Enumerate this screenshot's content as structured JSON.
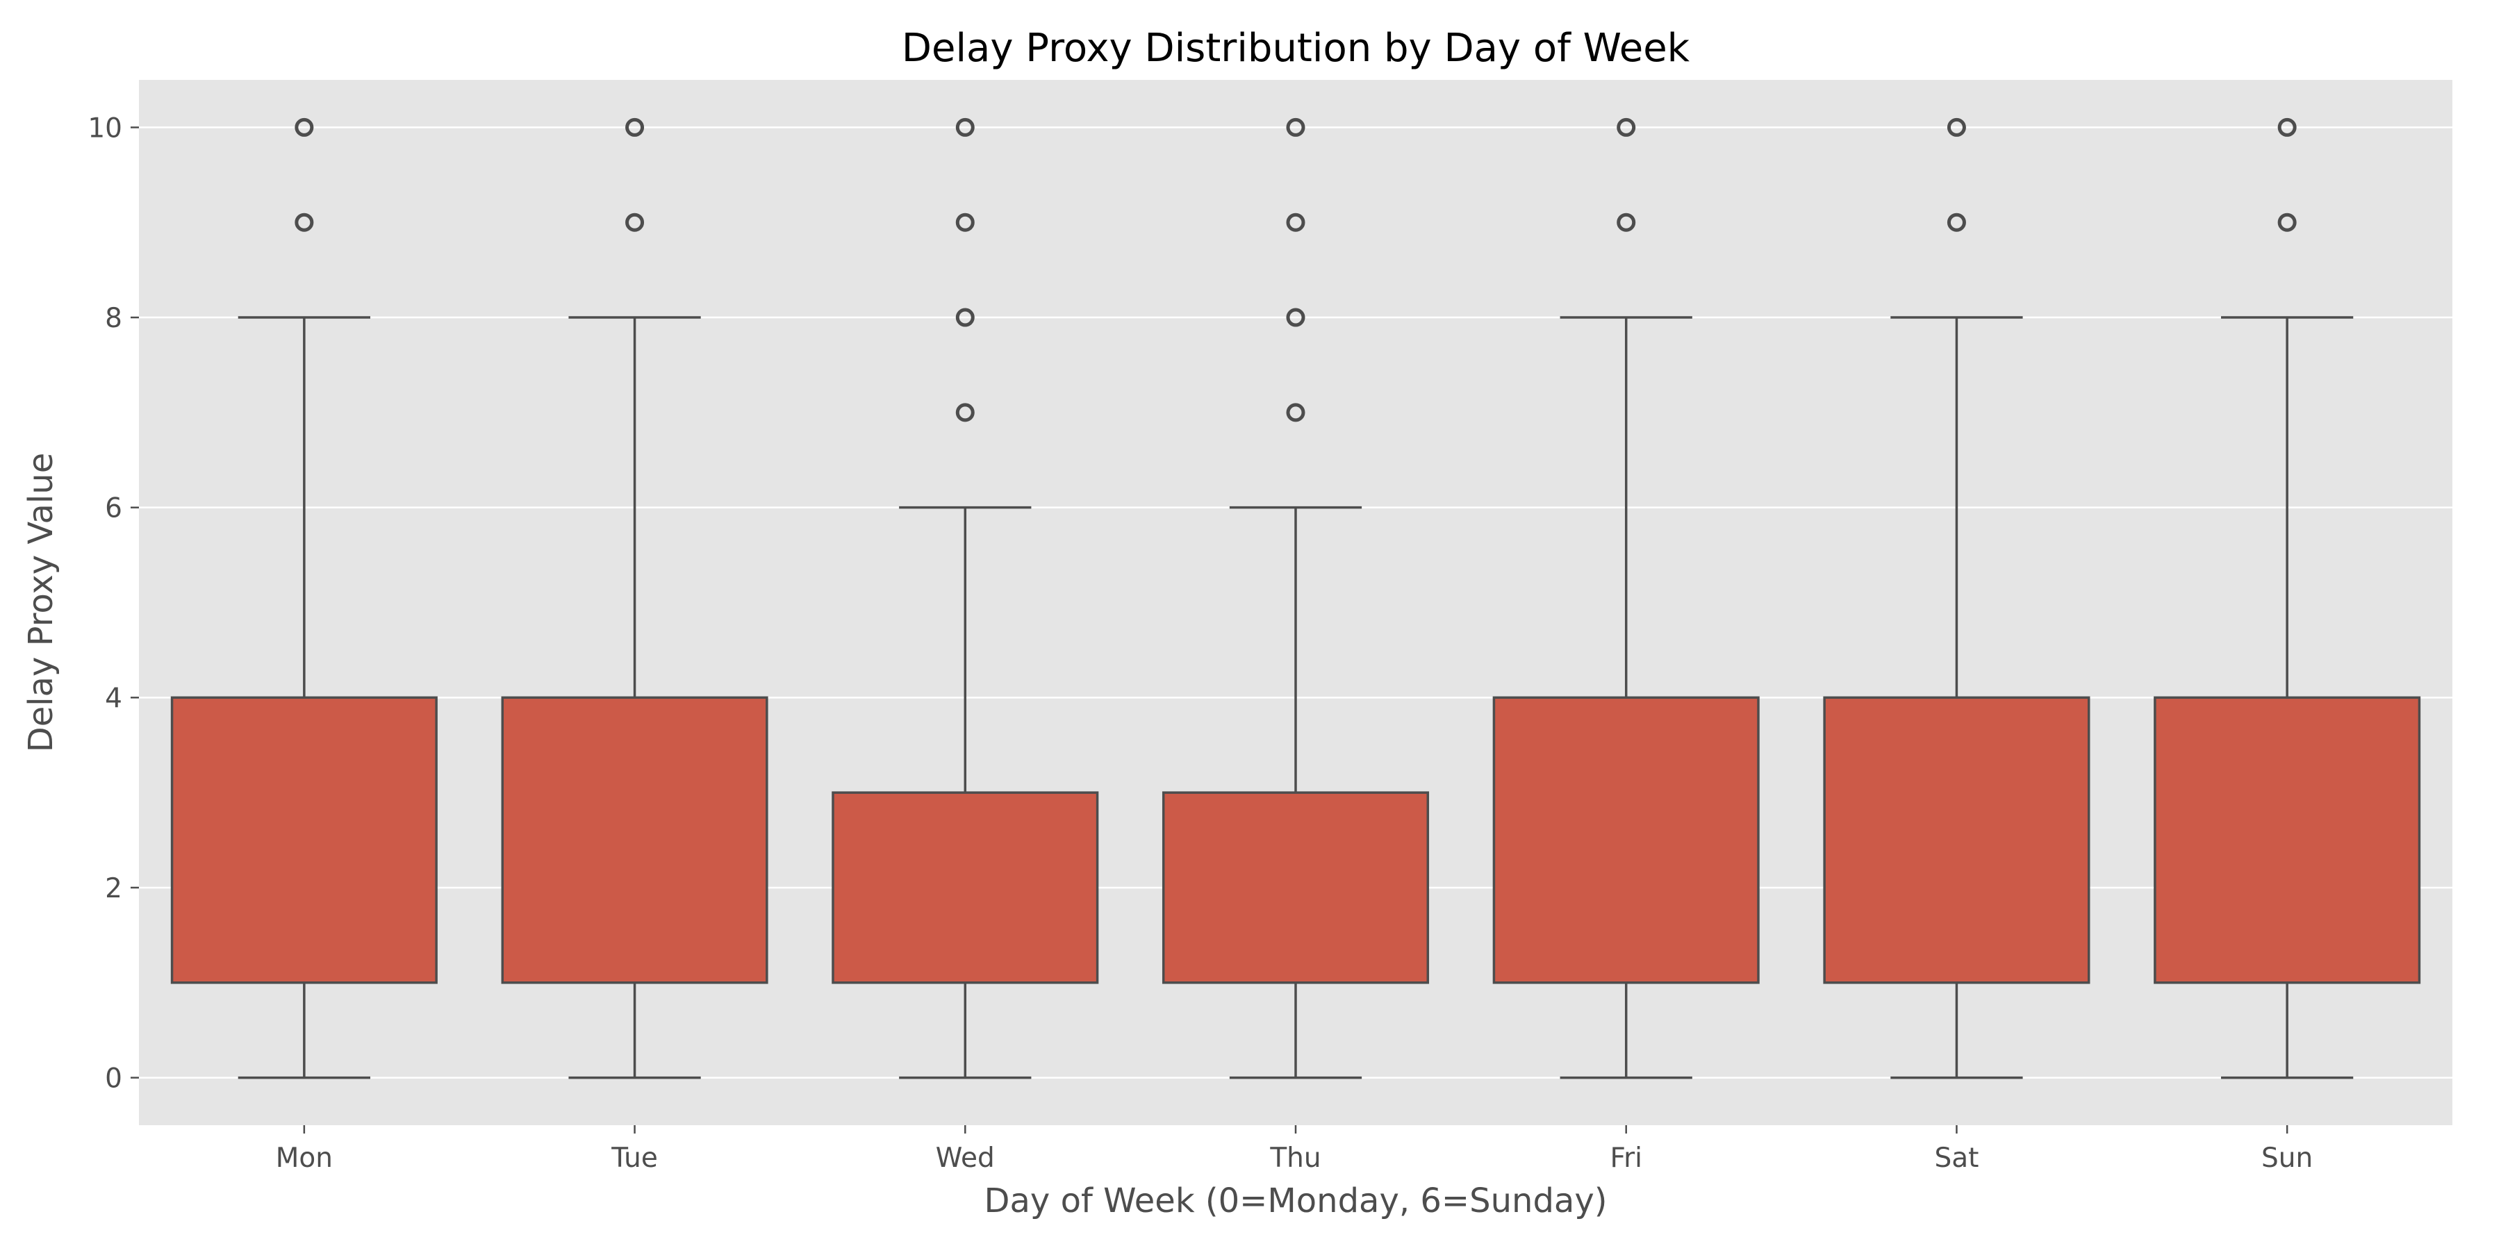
{
  "chart_data": {
    "type": "box",
    "title": "Delay Proxy Distribution by Day of Week",
    "xlabel": "Day of Week (0=Monday, 6=Sunday)",
    "ylabel": "Delay Proxy Value",
    "ylim": [
      -0.5,
      10.5
    ],
    "yticks": [
      0,
      2,
      4,
      6,
      8,
      10
    ],
    "grid": true,
    "colors": {
      "box_fill": "#cc5a48",
      "box_edge": "#4d4d4d",
      "plot_background": "#e5e5e5",
      "grid": "#ffffff"
    },
    "categories": [
      "Mon",
      "Tue",
      "Wed",
      "Thu",
      "Fri",
      "Sat",
      "Sun"
    ],
    "boxes": [
      {
        "category": "Mon",
        "whisker_low": 0,
        "q1": 1,
        "median": 1,
        "q3": 4,
        "whisker_high": 8,
        "outliers": [
          9,
          10
        ]
      },
      {
        "category": "Tue",
        "whisker_low": 0,
        "q1": 1,
        "median": 1,
        "q3": 4,
        "whisker_high": 8,
        "outliers": [
          9,
          10
        ]
      },
      {
        "category": "Wed",
        "whisker_low": 0,
        "q1": 1,
        "median": 1,
        "q3": 3,
        "whisker_high": 6,
        "outliers": [
          7,
          8,
          9,
          10
        ]
      },
      {
        "category": "Thu",
        "whisker_low": 0,
        "q1": 1,
        "median": 1,
        "q3": 3,
        "whisker_high": 6,
        "outliers": [
          7,
          8,
          9,
          10
        ]
      },
      {
        "category": "Fri",
        "whisker_low": 0,
        "q1": 1,
        "median": 1,
        "q3": 4,
        "whisker_high": 8,
        "outliers": [
          9,
          10
        ]
      },
      {
        "category": "Sat",
        "whisker_low": 0,
        "q1": 1,
        "median": 1,
        "q3": 4,
        "whisker_high": 8,
        "outliers": [
          9,
          10
        ]
      },
      {
        "category": "Sun",
        "whisker_low": 0,
        "q1": 1,
        "median": 1,
        "q3": 4,
        "whisker_high": 8,
        "outliers": [
          9,
          10
        ]
      }
    ]
  }
}
